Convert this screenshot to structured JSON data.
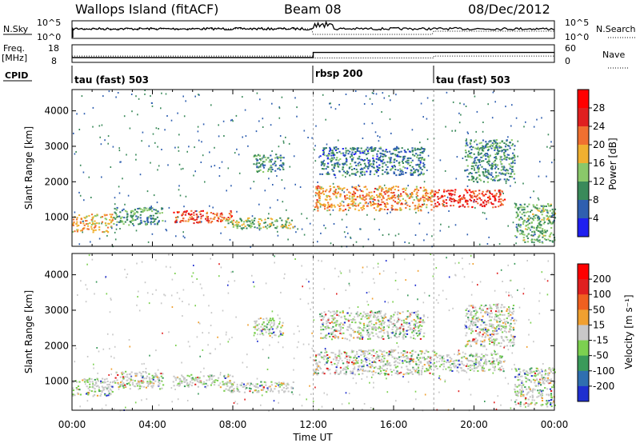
{
  "title": {
    "station": "Wallops Island (fitACF)",
    "beam": "Beam 08",
    "date": "08/Dec/2012"
  },
  "top_panels": {
    "nsky_label": "N.Sky",
    "nsky_ticks": [
      "10^5",
      "10^0"
    ],
    "nsearch_label": "N.Search",
    "nsearch_ticks": [
      "10^5",
      "10^0"
    ],
    "freq_label": "Freq.",
    "freq_unit": "[MHz]",
    "freq_ticks": [
      "18",
      "8"
    ],
    "nave_label": "Nave",
    "nave_ticks": [
      "60",
      "0"
    ],
    "cpid_label": "CPID",
    "cpid_segments": [
      {
        "name": "tau (fast) 503",
        "start_hour": 0,
        "end_hour": 12
      },
      {
        "name": "rbsp 200",
        "start_hour": 12,
        "end_hour": 18
      },
      {
        "name": "tau (fast) 503",
        "start_hour": 18,
        "end_hour": 24
      }
    ]
  },
  "x_axis": {
    "label": "Time UT",
    "ticks": [
      "00:00",
      "04:00",
      "08:00",
      "12:00",
      "16:00",
      "20:00",
      "00:00"
    ],
    "range_hours": [
      0,
      24
    ]
  },
  "y_axis": {
    "label": "Slant Range [km]",
    "ticks": [
      "1000",
      "2000",
      "3000",
      "4000"
    ],
    "range_km": [
      180,
      4600
    ]
  },
  "power_colorbar": {
    "label": "Power [dB]",
    "ticks": [
      "4",
      "8",
      "12",
      "16",
      "20",
      "24",
      "28"
    ],
    "colors": [
      "#1f1ff0",
      "#2f5fb0",
      "#3a8a5a",
      "#8ac86a",
      "#f0b030",
      "#f07030",
      "#e02020",
      "#ff0000"
    ]
  },
  "velocity_colorbar": {
    "label": "Velocity [m s⁻¹]",
    "ticks": [
      "200",
      "100",
      "50",
      "15",
      "-15",
      "-50",
      "-100",
      "-200"
    ],
    "colors": [
      "#1f2fd0",
      "#2f6fb0",
      "#3a9a5a",
      "#7cd050",
      "#c8c8c8",
      "#f0a030",
      "#f06020",
      "#e02020",
      "#ff0000"
    ]
  },
  "chart_data": {
    "type": "heatmap",
    "title": "Wallops Island (fitACF) Beam 08 08/Dec/2012",
    "xlabel": "Time UT",
    "ylabel": "Slant Range [km]",
    "xlim_hours": [
      0,
      24
    ],
    "ylim_km": [
      180,
      4600
    ],
    "frequency_MHz": [
      {
        "start_hour": 0,
        "end_hour": 12,
        "value": 10.5
      },
      {
        "start_hour": 12,
        "end_hour": 24,
        "value": 14.5
      }
    ],
    "nave": [
      {
        "start_hour": 0,
        "end_hour": 12,
        "value": 22
      },
      {
        "start_hour": 12,
        "end_hour": 18,
        "value": 13
      },
      {
        "start_hour": 18,
        "end_hour": 24,
        "value": 22
      }
    ],
    "echo_bands": [
      {
        "t0": 0.0,
        "t1": 2.0,
        "r0": 600,
        "r1": 1100,
        "power": 18
      },
      {
        "t0": 2.0,
        "t1": 4.5,
        "r0": 800,
        "r1": 1300,
        "power": 10
      },
      {
        "t0": 5.0,
        "t1": 8.0,
        "r0": 850,
        "r1": 1200,
        "power": 24
      },
      {
        "t0": 7.5,
        "t1": 11.0,
        "r0": 700,
        "r1": 1000,
        "power": 14
      },
      {
        "t0": 9.0,
        "t1": 10.5,
        "r0": 2300,
        "r1": 2800,
        "power": 10
      },
      {
        "t0": 12.0,
        "t1": 18.0,
        "r0": 1200,
        "r1": 1900,
        "power": 20
      },
      {
        "t0": 12.3,
        "t1": 17.5,
        "r0": 2200,
        "r1": 3000,
        "power": 8
      },
      {
        "t0": 18.0,
        "t1": 21.5,
        "r0": 1300,
        "r1": 1800,
        "power": 26
      },
      {
        "t0": 19.5,
        "t1": 22.0,
        "r0": 2000,
        "r1": 3200,
        "power": 10
      },
      {
        "t0": 22.0,
        "t1": 24.0,
        "r0": 300,
        "r1": 1400,
        "power": 12
      }
    ]
  }
}
